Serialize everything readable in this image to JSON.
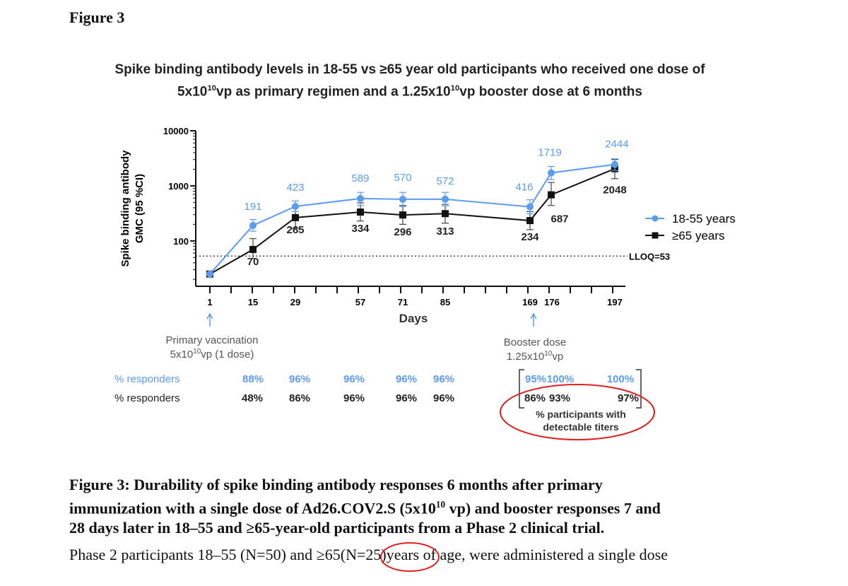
{
  "figure_label": "Figure 3",
  "chart_data": {
    "type": "line",
    "title_line1": "Spike binding antibody levels in 18-55 vs ≥65 year old participants who received one dose of",
    "title_line2_parts": [
      "5x10",
      "10",
      "vp as primary regimen and a 1.25x10",
      "10",
      "vp booster dose at 6 months"
    ],
    "ylabel_line1": "Spike binding antibody",
    "ylabel_line2": "GMC (95 %CI)",
    "xlabel": "Days",
    "y_scale": "log",
    "ylim": [
      15,
      10000
    ],
    "y_ticks": [
      {
        "value": 100,
        "label": "100"
      },
      {
        "value": 1000,
        "label": "1000"
      },
      {
        "value": 10000,
        "label": "10000"
      }
    ],
    "x_ticks": [
      "1",
      "15",
      "29",
      "57",
      "71",
      "85",
      "169",
      "176",
      "197"
    ],
    "lloq": {
      "value": 53,
      "label": "LLOQ=53"
    },
    "series": [
      {
        "name": "18-55 years",
        "color": "#5b9bf0",
        "marker": "circle",
        "x": [
          1,
          15,
          29,
          57,
          71,
          85,
          169,
          176,
          197
        ],
        "values": [
          25,
          191,
          423,
          589,
          570,
          572,
          416,
          1719,
          2444
        ],
        "labels": [
          "",
          "191",
          "423",
          "589",
          "570",
          "572",
          "416",
          "1719",
          "2444"
        ],
        "ci_low": [
          25,
          150,
          340,
          440,
          420,
          430,
          310,
          1300,
          1900
        ],
        "ci_high": [
          25,
          245,
          530,
          760,
          760,
          760,
          560,
          2250,
          3100
        ]
      },
      {
        "name": "≥65 years",
        "color": "#111111",
        "marker": "square",
        "x": [
          1,
          15,
          29,
          57,
          71,
          85,
          169,
          176,
          197
        ],
        "values": [
          25,
          70,
          265,
          334,
          296,
          313,
          234,
          687,
          2048
        ],
        "labels": [
          "",
          "70",
          "265",
          "334",
          "296",
          "313",
          "234",
          "687",
          "2048"
        ],
        "ci_low": [
          25,
          48,
          170,
          230,
          200,
          210,
          160,
          440,
          1350
        ],
        "ci_high": [
          25,
          110,
          420,
          490,
          440,
          460,
          340,
          1150,
          3000
        ]
      }
    ],
    "annotations": {
      "primary_line1": "Primary vaccination",
      "primary_line2_parts": [
        "5x10",
        "10",
        "vp (1 dose)"
      ],
      "booster_line1": "Booster dose",
      "booster_line2_parts": [
        "1.25x10",
        "10",
        "vp"
      ]
    },
    "responders": {
      "label": "% responders",
      "row_young": [
        "88%",
        "96%",
        "96%",
        "96%",
        "96%",
        "95%",
        "100%",
        "100%"
      ],
      "row_old": [
        "48%",
        "86%",
        "96%",
        "96%",
        "96%",
        "86%",
        "93%",
        "97%"
      ],
      "detectable_line1": "% participants with",
      "detectable_line2": "detectable titers"
    }
  },
  "caption": {
    "bold_line1": "Figure 3: Durability of spike binding antibody responses 6 months after primary",
    "bold_line2_a": "immunization with a single dose of Ad26.COV2.S (5x10",
    "bold_line2_sup": "10",
    "bold_line2_b": " vp) and booster responses 7 and",
    "bold_line3": "28 days later in 18–55 and ≥65-year-old participants from a Phase 2 clinical trial.",
    "body_a": "Phase 2 participants 18–55 (N=50) and ≥65",
    "body_n": "(N=25)",
    "body_b": "years of age, were administered a single dose"
  },
  "highlight_color": "#e02020"
}
